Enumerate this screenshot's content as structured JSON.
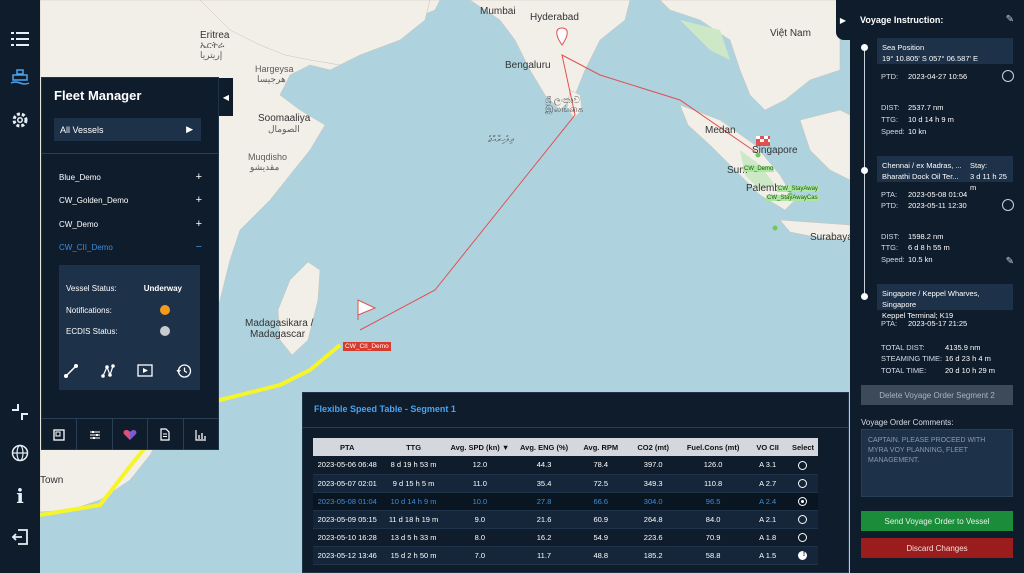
{
  "rail": {
    "icons": [
      "list-icon",
      "ship-icon",
      "gear-icon",
      "collapse-arrows-icon",
      "globe-icon",
      "info-icon",
      "logout-icon"
    ]
  },
  "map": {
    "labels": {
      "mumbai": "Mumbai",
      "hyderabad": "Hyderabad",
      "bengaluru": "Bengaluru",
      "srilanka": "ශ්‍රී ලංකාව",
      "srilanka2": "இலங்கை",
      "maldives": "ދިވެހިރާއްޖެ",
      "eritrea": "Eritrea",
      "eritrea2": "ኤርትራ",
      "eritrea3": "إريتريا",
      "hargeysa": "Hargeysa",
      "hargeysa2": "هرجيسا",
      "somaliland": "Soomaaliya",
      "somaliland2": "الصومال",
      "muqdisho": "Muqdisho",
      "muqdisho2": "مقديشو",
      "madagascar": "Madagasikara /",
      "madagascar2": "Madagascar",
      "town": "Town",
      "medan": "Medan",
      "singapore": "Singapore",
      "palembang": "Palemb",
      "surabaya": "Surabaya",
      "vietnam": "Việt Nam",
      "sumatra": "Sum"
    },
    "tags": {
      "vessel": "CW_CII_Demo",
      "demo": "CW_Demo",
      "stayaway": "CW_StayAway",
      "stayawaycas": "CW_StayAwayCas"
    },
    "route_color": "#e05050",
    "track_color": "#f5f52a"
  },
  "fleet": {
    "title": "Fleet Manager",
    "select_value": "All Vessels",
    "vessels": [
      {
        "label": "Blue_Demo",
        "toggle": "+"
      },
      {
        "label": "CW_Golden_Demo",
        "toggle": "+"
      },
      {
        "label": "CW_Demo",
        "toggle": "+"
      },
      {
        "label": "CW_CII_Demo",
        "toggle": "−"
      }
    ],
    "status": {
      "vessel_status_label": "Vessel Status:",
      "vessel_status_value": "Underway",
      "notifications_label": "Notifications:",
      "notifications_color": "#f39a1f",
      "ecdis_label": "ECDIS Status:",
      "ecdis_color": "#c8cbd0"
    },
    "tabs": [
      "square-icon",
      "sliders-icon",
      "heart-icon",
      "document-icon",
      "chart-icon"
    ]
  },
  "voyage": {
    "title": "Voyage Instruction:",
    "wp1": {
      "name": "Sea Position",
      "coords": "19° 10.805' S 057° 06.587' E",
      "ptd_label": "PTD:",
      "ptd": "2023-04-27 10:56",
      "dist_label": "DIST:",
      "dist": "2537.7 nm",
      "ttg_label": "TTG:",
      "ttg": "10 d 14 h 9 m",
      "speed_label": "Speed:",
      "speed": "10 kn"
    },
    "wp2": {
      "name": "Chennai / ex Madras, ...",
      "stay_label": "Stay:",
      "terminal": "Bharathi Dock Oil Ter...",
      "stay": "3 d 11 h 25 m",
      "pta_label": "PTA:",
      "pta": "2023-05-08 01:04",
      "ptd_label": "PTD:",
      "ptd": "2023-05-11 12:30",
      "dist_label": "DIST:",
      "dist": "1598.2 nm",
      "ttg_label": "TTG:",
      "ttg": "6 d 8 h 55 m",
      "speed_label": "Speed:",
      "speed": "10.5 kn"
    },
    "wp3": {
      "name": "Singapore / Keppel Wharves, Singapore",
      "terminal": "Keppel Terminal; K19",
      "pta_label": "PTA:",
      "pta": "2023-05-17 21:25"
    },
    "totals": {
      "dist_label": "TOTAL DIST:",
      "dist": "4135.9 nm",
      "steaming_label": "STEAMING TIME:",
      "steaming": "16 d 23 h 4 m",
      "total_label": "TOTAL TIME:",
      "total": "20 d 10 h 29 m"
    },
    "delete_btn": "Delete Voyage Order Segment 2",
    "comments_label": "Voyage Order Comments:",
    "comments": "CAPTAIN. PLEASE PROCEED WITH MYRA VOY PLANNING, FLEET MANAGEMENT.",
    "send_btn": "Send Voyage Order to Vessel",
    "discard_btn": "Discard Changes"
  },
  "speed_table": {
    "title": "Flexible Speed Table - Segment 1",
    "headers": [
      "PTA",
      "TTG",
      "Avg. SPD (kn) ▼",
      "Avg. ENG (%)",
      "Avg. RPM",
      "CO2 (mt)",
      "Fuel.Cons (mt)",
      "VO CII",
      "Select"
    ],
    "rows": [
      [
        "2023-05-06 06:48",
        "8 d 19 h 53 m",
        "12.0",
        "44.3",
        "78.4",
        "397.0",
        "126.0",
        "A 3.1"
      ],
      [
        "2023-05-07 02:01",
        "9 d 15 h 5 m",
        "11.0",
        "35.4",
        "72.5",
        "349.3",
        "110.8",
        "A 2.7"
      ],
      [
        "2023-05-08 01:04",
        "10 d 14 h 9 m",
        "10.0",
        "27.8",
        "66.6",
        "304.0",
        "96.5",
        "A 2.4"
      ],
      [
        "2023-05-09 05:15",
        "11 d 18 h 19 m",
        "9.0",
        "21.6",
        "60.9",
        "264.8",
        "84.0",
        "A 2.1"
      ],
      [
        "2023-05-10 16:28",
        "13 d 5 h 33 m",
        "8.0",
        "16.2",
        "54.9",
        "223.6",
        "70.9",
        "A 1.8"
      ],
      [
        "2023-05-12 13:46",
        "15 d 2 h 50 m",
        "7.0",
        "11.7",
        "48.8",
        "185.2",
        "58.8",
        "A 1.5"
      ]
    ],
    "selected_row": 2,
    "warn_row": 5
  }
}
